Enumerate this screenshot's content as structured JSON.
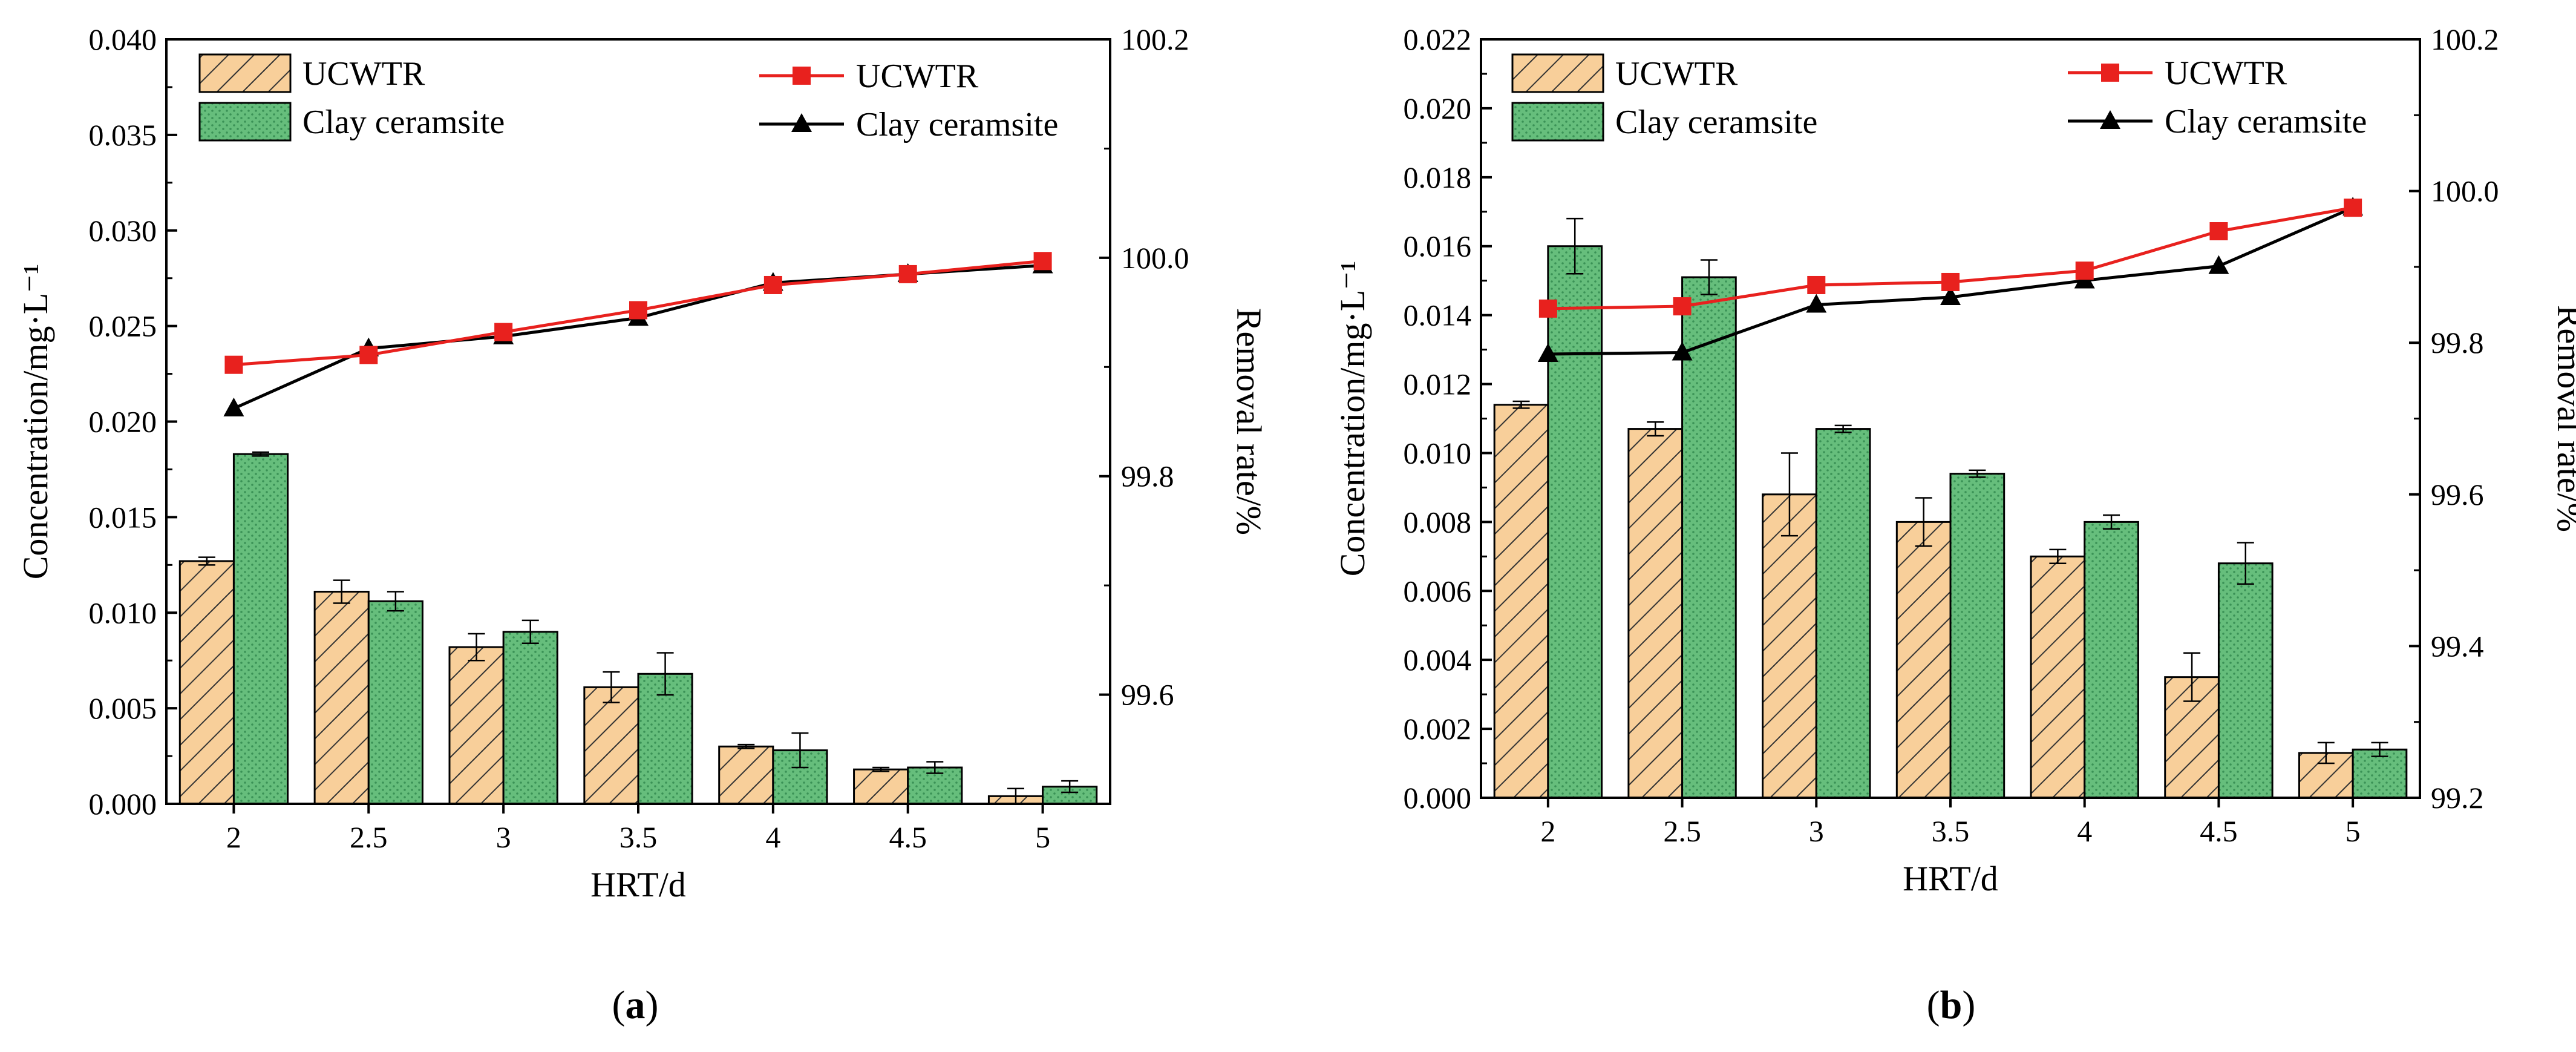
{
  "colors": {
    "ucwtr_bar_fill": "#f8cf9a",
    "ucwtr_bar_hatch": "#333333",
    "clay_bar_fill": "#66be7c",
    "clay_bar_dots": "#3a9256",
    "ucwtr_line": "#e8211e",
    "clay_line": "#000000"
  },
  "chart_data": [
    {
      "type": "bar+line",
      "panel_label": "a",
      "xlabel": "HRT/d",
      "ylabel": "Concentration/mg·L⁻¹",
      "y2label": "Removal rate/%",
      "categories": [
        "2",
        "2.5",
        "3",
        "3.5",
        "4",
        "4.5",
        "5"
      ],
      "ylim": [
        0,
        0.04
      ],
      "y_ticks": [
        "0.000",
        "0.005",
        "0.010",
        "0.015",
        "0.020",
        "0.025",
        "0.030",
        "0.035",
        "0.040"
      ],
      "y2lim": [
        99.5,
        100.2
      ],
      "y2_ticks": [
        "99.6",
        "99.8",
        "100.0",
        "100.2"
      ],
      "legend": {
        "bar_ucwtr": "UCWTR",
        "bar_clay": "Clay ceramsite",
        "line_ucwtr": "UCWTR",
        "line_clay": "Clay ceramsite"
      },
      "bar_series": [
        {
          "name": "UCWTR",
          "values": [
            0.0127,
            0.0111,
            0.0082,
            0.0061,
            0.003,
            0.0018,
            0.0004
          ],
          "errors": [
            0.0002,
            0.0006,
            0.0007,
            0.0008,
            0.0001,
            0.0001,
            0.0004
          ]
        },
        {
          "name": "Clay ceramsite",
          "values": [
            0.0183,
            0.0106,
            0.009,
            0.0068,
            0.0028,
            0.0019,
            0.0009
          ],
          "errors": [
            0.0001,
            0.0005,
            0.0006,
            0.0011,
            0.0009,
            0.0003,
            0.0003
          ]
        }
      ],
      "line_series": [
        {
          "name": "UCWTR",
          "values": [
            99.902,
            99.911,
            99.932,
            99.952,
            99.975,
            99.985,
            99.997
          ],
          "errors": [
            0,
            0,
            0,
            0,
            0,
            0,
            0
          ]
        },
        {
          "name": "Clay ceramsite",
          "values": [
            99.862,
            99.917,
            99.928,
            99.945,
            99.977,
            99.985,
            99.993
          ],
          "errors": [
            0,
            0,
            0,
            0.005,
            0.004,
            0,
            0
          ]
        }
      ]
    },
    {
      "type": "bar+line",
      "panel_label": "b",
      "xlabel": "HRT/d",
      "ylabel": "Concentration/mg·L⁻¹",
      "y2label": "Removal rate/%",
      "categories": [
        "2",
        "2.5",
        "3",
        "3.5",
        "4",
        "4.5",
        "5"
      ],
      "ylim": [
        0,
        0.022
      ],
      "y_ticks": [
        "0.000",
        "0.002",
        "0.004",
        "0.006",
        "0.008",
        "0.010",
        "0.012",
        "0.014",
        "0.016",
        "0.018",
        "0.020",
        "0.022"
      ],
      "y2lim": [
        99.2,
        100.2
      ],
      "y2_ticks": [
        "99.2",
        "99.4",
        "99.6",
        "99.8",
        "100.0",
        "100.2"
      ],
      "legend": {
        "bar_ucwtr": "UCWTR",
        "bar_clay": "Clay ceramsite",
        "line_ucwtr": "UCWTR",
        "line_clay": "Clay ceramsite"
      },
      "bar_series": [
        {
          "name": "UCWTR",
          "values": [
            0.0114,
            0.0107,
            0.0088,
            0.008,
            0.007,
            0.0035,
            0.0013
          ],
          "errors": [
            0.0001,
            0.0002,
            0.0012,
            0.0007,
            0.0002,
            0.0007,
            0.0003
          ]
        },
        {
          "name": "Clay ceramsite",
          "values": [
            0.016,
            0.0151,
            0.0107,
            0.0094,
            0.008,
            0.0068,
            0.0014
          ],
          "errors": [
            0.0008,
            0.0005,
            0.0001,
            0.0001,
            0.0002,
            0.0006,
            0.0002
          ]
        }
      ],
      "line_series": [
        {
          "name": "UCWTR",
          "values": [
            99.845,
            99.848,
            99.876,
            99.88,
            99.895,
            99.947,
            99.978
          ],
          "errors": [
            0,
            0,
            0.007,
            0,
            0,
            0,
            0
          ]
        },
        {
          "name": "Clay ceramsite",
          "values": [
            99.785,
            99.787,
            99.85,
            99.86,
            99.882,
            99.901,
            99.978
          ],
          "errors": [
            0.008,
            0,
            0,
            0,
            0,
            0,
            0
          ]
        }
      ]
    }
  ]
}
